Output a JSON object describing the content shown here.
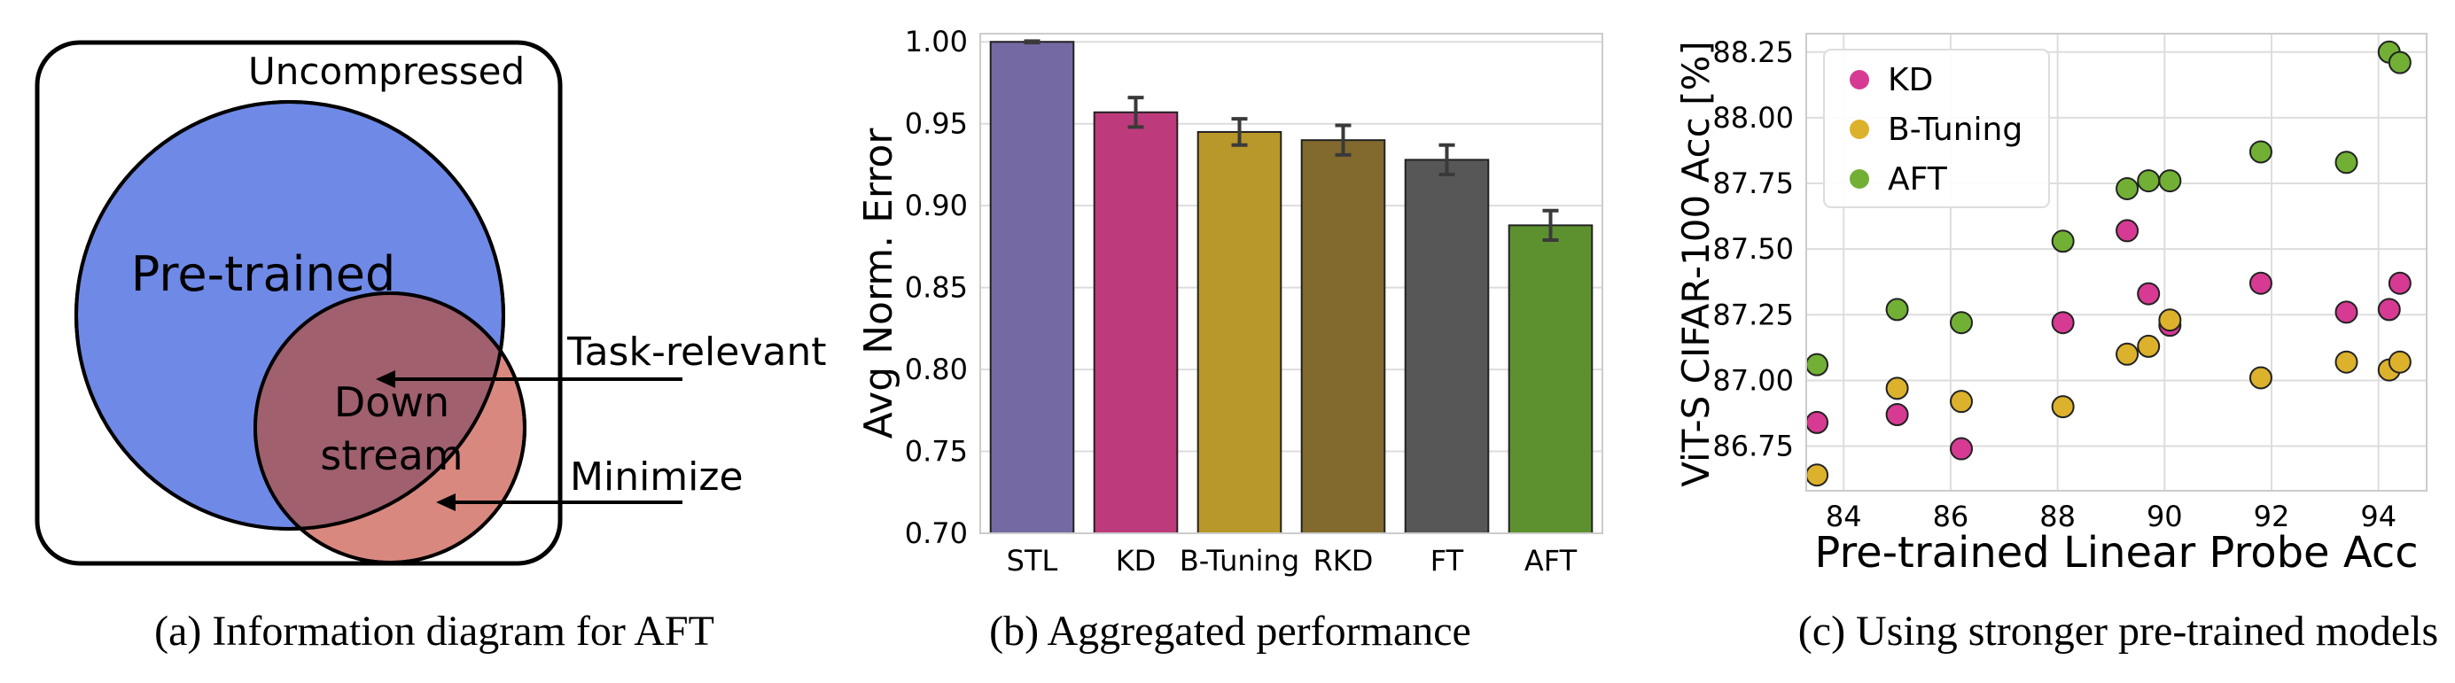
{
  "panel_a": {
    "outer_label": "Uncompressed",
    "pretrained_label": "Pre-trained",
    "downstream_line1": "Down",
    "downstream_line2": "stream",
    "annotation_task": "Task-relevant",
    "annotation_minimize": "Minimize",
    "caption": "(a) Information diagram for AFT",
    "colors": {
      "pretrained": "#6f89e6",
      "downstream": "#d9887f",
      "overlap": "#a0606e"
    }
  },
  "panel_b": {
    "caption": "(b) Aggregated performance"
  },
  "panel_c": {
    "caption": "(c) Using stronger pre-trained models"
  },
  "chart_data": [
    {
      "type": "bar",
      "ylabel": "Avg Norm. Error",
      "xlabel": "",
      "ylim": [
        0.7,
        1.005
      ],
      "yticks": [
        0.7,
        0.75,
        0.8,
        0.85,
        0.9,
        0.95,
        1.0
      ],
      "ytick_labels": [
        "0.70",
        "0.75",
        "0.80",
        "0.85",
        "0.90",
        "0.95",
        "1.00"
      ],
      "categories": [
        "STL",
        "KD",
        "B-Tuning",
        "RKD",
        "FT",
        "AFT"
      ],
      "values": [
        1.0,
        0.957,
        0.945,
        0.94,
        0.928,
        0.888
      ],
      "errors": [
        0.0005,
        0.009,
        0.008,
        0.009,
        0.009,
        0.009
      ],
      "colors": [
        "#7569a4",
        "#bd3b7c",
        "#b8982a",
        "#826a2e",
        "#575757",
        "#5d912f"
      ],
      "grid": true
    },
    {
      "type": "scatter",
      "xlabel": "Pre-trained Linear Probe Acc",
      "ylabel": "ViT-S CIFAR-100 Acc [%]",
      "xlim": [
        83.3,
        94.9
      ],
      "ylim": [
        86.58,
        88.32
      ],
      "xticks": [
        84,
        86,
        88,
        90,
        92,
        94
      ],
      "yticks": [
        86.75,
        87.0,
        87.25,
        87.5,
        87.75,
        88.0,
        88.25
      ],
      "ytick_labels": [
        "86.75",
        "87.00",
        "87.25",
        "87.50",
        "87.75",
        "88.00",
        "88.25"
      ],
      "legend_position": "top-left",
      "grid": true,
      "series": [
        {
          "name": "KD",
          "color": "#d63a93",
          "points": [
            [
              83.5,
              86.84
            ],
            [
              85.0,
              86.87
            ],
            [
              86.2,
              86.74
            ],
            [
              88.1,
              87.22
            ],
            [
              89.3,
              87.57
            ],
            [
              89.7,
              87.33
            ],
            [
              90.1,
              87.21
            ],
            [
              91.8,
              87.37
            ],
            [
              93.4,
              87.26
            ],
            [
              94.2,
              87.27
            ],
            [
              94.4,
              87.37
            ]
          ]
        },
        {
          "name": "B-Tuning",
          "color": "#dcb12b",
          "points": [
            [
              83.5,
              86.64
            ],
            [
              85.0,
              86.97
            ],
            [
              86.2,
              86.92
            ],
            [
              88.1,
              86.9
            ],
            [
              89.3,
              87.1
            ],
            [
              89.7,
              87.13
            ],
            [
              90.1,
              87.23
            ],
            [
              91.8,
              87.01
            ],
            [
              93.4,
              87.07
            ],
            [
              94.2,
              87.04
            ],
            [
              94.4,
              87.07
            ]
          ]
        },
        {
          "name": "AFT",
          "color": "#71b034",
          "points": [
            [
              83.5,
              87.06
            ],
            [
              85.0,
              87.27
            ],
            [
              86.2,
              87.22
            ],
            [
              88.1,
              87.53
            ],
            [
              89.3,
              87.73
            ],
            [
              89.7,
              87.76
            ],
            [
              90.1,
              87.76
            ],
            [
              91.8,
              87.87
            ],
            [
              93.4,
              87.83
            ],
            [
              94.2,
              88.25
            ],
            [
              94.4,
              88.21
            ]
          ]
        }
      ]
    }
  ]
}
